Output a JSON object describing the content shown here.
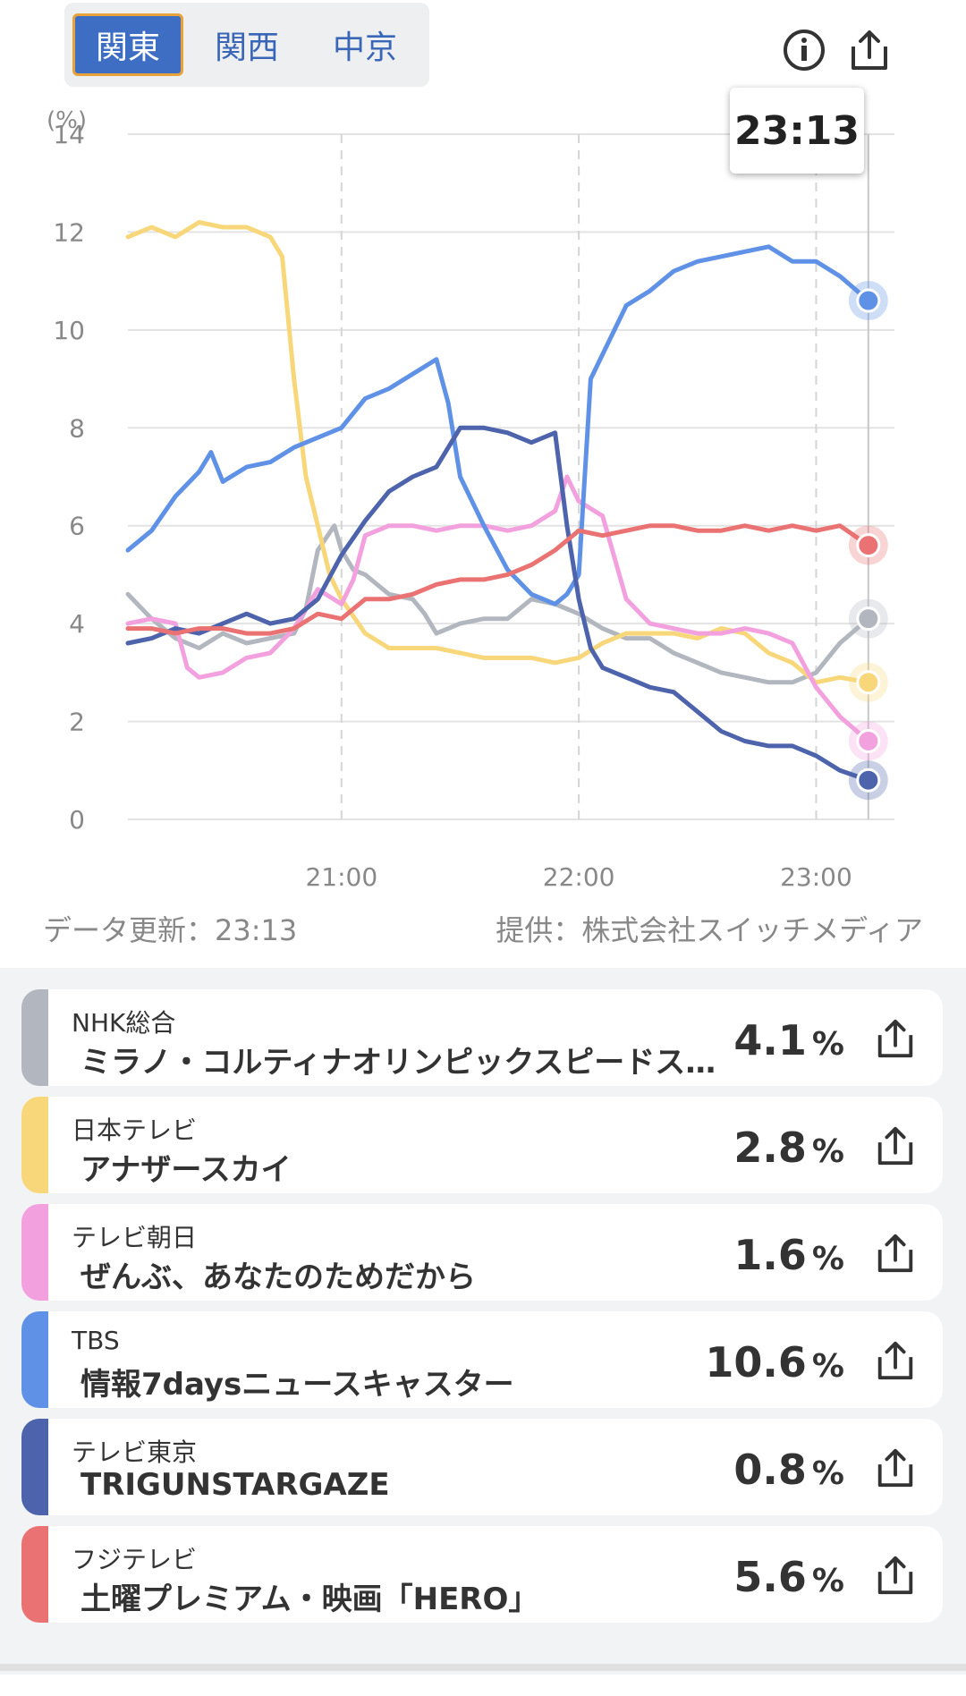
{
  "region_tabs": [
    {
      "label": "関東",
      "active": true
    },
    {
      "label": "関西",
      "active": false
    },
    {
      "label": "中京",
      "active": false
    }
  ],
  "icons": {
    "info": "info-icon",
    "share": "share-icon"
  },
  "tooltip_time": "23:13",
  "chart_data": {
    "type": "line",
    "ylabel": "(%)",
    "ylim": [
      0,
      14
    ],
    "yticks": [
      0,
      2,
      4,
      6,
      8,
      10,
      12,
      14
    ],
    "xlim": [
      20.1,
      23.33
    ],
    "xticks": [
      {
        "v": 21,
        "label": "21:00"
      },
      {
        "v": 22,
        "label": "22:00"
      },
      {
        "v": 23,
        "label": "23:00"
      }
    ],
    "cursor_x": 23.22,
    "grid": true,
    "series": [
      {
        "name": "NHK総合",
        "color": "#b2b7bf",
        "points": [
          [
            20.1,
            4.6
          ],
          [
            20.2,
            4.1
          ],
          [
            20.3,
            3.7
          ],
          [
            20.4,
            3.5
          ],
          [
            20.5,
            3.8
          ],
          [
            20.6,
            3.6
          ],
          [
            20.7,
            3.7
          ],
          [
            20.8,
            3.8
          ],
          [
            20.85,
            4.3
          ],
          [
            20.9,
            5.5
          ],
          [
            20.97,
            6.0
          ],
          [
            21.0,
            5.5
          ],
          [
            21.05,
            5.1
          ],
          [
            21.1,
            5.0
          ],
          [
            21.2,
            4.6
          ],
          [
            21.3,
            4.5
          ],
          [
            21.35,
            4.2
          ],
          [
            21.4,
            3.8
          ],
          [
            21.5,
            4.0
          ],
          [
            21.6,
            4.1
          ],
          [
            21.7,
            4.1
          ],
          [
            21.8,
            4.5
          ],
          [
            21.9,
            4.4
          ],
          [
            22.0,
            4.2
          ],
          [
            22.1,
            3.9
          ],
          [
            22.2,
            3.7
          ],
          [
            22.3,
            3.7
          ],
          [
            22.4,
            3.4
          ],
          [
            22.5,
            3.2
          ],
          [
            22.6,
            3.0
          ],
          [
            22.7,
            2.9
          ],
          [
            22.8,
            2.8
          ],
          [
            22.9,
            2.8
          ],
          [
            23.0,
            3.0
          ],
          [
            23.1,
            3.6
          ],
          [
            23.22,
            4.1
          ]
        ]
      },
      {
        "name": "日本テレビ",
        "color": "#f8d77a",
        "points": [
          [
            20.1,
            11.9
          ],
          [
            20.2,
            12.1
          ],
          [
            20.3,
            11.9
          ],
          [
            20.4,
            12.2
          ],
          [
            20.5,
            12.1
          ],
          [
            20.6,
            12.1
          ],
          [
            20.7,
            11.9
          ],
          [
            20.75,
            11.5
          ],
          [
            20.8,
            9.0
          ],
          [
            20.85,
            7.0
          ],
          [
            20.9,
            6.0
          ],
          [
            20.95,
            5.0
          ],
          [
            21.0,
            4.5
          ],
          [
            21.1,
            3.8
          ],
          [
            21.2,
            3.5
          ],
          [
            21.4,
            3.5
          ],
          [
            21.6,
            3.3
          ],
          [
            21.8,
            3.3
          ],
          [
            21.9,
            3.2
          ],
          [
            22.0,
            3.3
          ],
          [
            22.1,
            3.6
          ],
          [
            22.2,
            3.8
          ],
          [
            22.4,
            3.8
          ],
          [
            22.5,
            3.7
          ],
          [
            22.6,
            3.9
          ],
          [
            22.7,
            3.8
          ],
          [
            22.8,
            3.4
          ],
          [
            22.9,
            3.2
          ],
          [
            23.0,
            2.8
          ],
          [
            23.1,
            2.9
          ],
          [
            23.22,
            2.8
          ]
        ]
      },
      {
        "name": "テレビ朝日",
        "color": "#f2a0de",
        "points": [
          [
            20.1,
            4.0
          ],
          [
            20.2,
            4.1
          ],
          [
            20.3,
            4.0
          ],
          [
            20.35,
            3.1
          ],
          [
            20.4,
            2.9
          ],
          [
            20.5,
            3.0
          ],
          [
            20.6,
            3.3
          ],
          [
            20.7,
            3.4
          ],
          [
            20.8,
            3.9
          ],
          [
            20.9,
            4.7
          ],
          [
            21.0,
            4.4
          ],
          [
            21.05,
            4.9
          ],
          [
            21.1,
            5.8
          ],
          [
            21.2,
            6.0
          ],
          [
            21.3,
            6.0
          ],
          [
            21.4,
            5.9
          ],
          [
            21.5,
            6.0
          ],
          [
            21.6,
            6.0
          ],
          [
            21.7,
            5.9
          ],
          [
            21.8,
            6.0
          ],
          [
            21.9,
            6.3
          ],
          [
            21.95,
            7.0
          ],
          [
            22.0,
            6.5
          ],
          [
            22.1,
            6.2
          ],
          [
            22.2,
            4.5
          ],
          [
            22.3,
            4.0
          ],
          [
            22.4,
            3.9
          ],
          [
            22.5,
            3.8
          ],
          [
            22.6,
            3.8
          ],
          [
            22.7,
            3.9
          ],
          [
            22.8,
            3.8
          ],
          [
            22.9,
            3.6
          ],
          [
            23.0,
            2.7
          ],
          [
            23.1,
            2.1
          ],
          [
            23.22,
            1.6
          ]
        ]
      },
      {
        "name": "TBS",
        "color": "#5f92e6",
        "points": [
          [
            20.1,
            5.5
          ],
          [
            20.2,
            5.9
          ],
          [
            20.3,
            6.6
          ],
          [
            20.4,
            7.1
          ],
          [
            20.45,
            7.5
          ],
          [
            20.5,
            6.9
          ],
          [
            20.6,
            7.2
          ],
          [
            20.7,
            7.3
          ],
          [
            20.8,
            7.6
          ],
          [
            20.9,
            7.8
          ],
          [
            21.0,
            8.0
          ],
          [
            21.1,
            8.6
          ],
          [
            21.2,
            8.8
          ],
          [
            21.3,
            9.1
          ],
          [
            21.4,
            9.4
          ],
          [
            21.45,
            8.5
          ],
          [
            21.5,
            7.0
          ],
          [
            21.6,
            6.0
          ],
          [
            21.7,
            5.1
          ],
          [
            21.8,
            4.6
          ],
          [
            21.9,
            4.4
          ],
          [
            21.95,
            4.6
          ],
          [
            22.0,
            5.0
          ],
          [
            22.05,
            9.0
          ],
          [
            22.1,
            9.5
          ],
          [
            22.2,
            10.5
          ],
          [
            22.3,
            10.8
          ],
          [
            22.4,
            11.2
          ],
          [
            22.5,
            11.4
          ],
          [
            22.6,
            11.5
          ],
          [
            22.7,
            11.6
          ],
          [
            22.8,
            11.7
          ],
          [
            22.9,
            11.4
          ],
          [
            23.0,
            11.4
          ],
          [
            23.1,
            11.1
          ],
          [
            23.22,
            10.6
          ]
        ]
      },
      {
        "name": "テレビ東京",
        "color": "#4d63ab",
        "points": [
          [
            20.1,
            3.6
          ],
          [
            20.2,
            3.7
          ],
          [
            20.3,
            3.9
          ],
          [
            20.4,
            3.8
          ],
          [
            20.5,
            4.0
          ],
          [
            20.6,
            4.2
          ],
          [
            20.7,
            4.0
          ],
          [
            20.8,
            4.1
          ],
          [
            20.9,
            4.5
          ],
          [
            21.0,
            5.4
          ],
          [
            21.1,
            6.1
          ],
          [
            21.2,
            6.7
          ],
          [
            21.3,
            7.0
          ],
          [
            21.4,
            7.2
          ],
          [
            21.5,
            8.0
          ],
          [
            21.6,
            8.0
          ],
          [
            21.7,
            7.9
          ],
          [
            21.8,
            7.7
          ],
          [
            21.9,
            7.9
          ],
          [
            21.95,
            6.0
          ],
          [
            22.0,
            4.5
          ],
          [
            22.05,
            3.5
          ],
          [
            22.1,
            3.1
          ],
          [
            22.2,
            2.9
          ],
          [
            22.3,
            2.7
          ],
          [
            22.4,
            2.6
          ],
          [
            22.5,
            2.2
          ],
          [
            22.6,
            1.8
          ],
          [
            22.7,
            1.6
          ],
          [
            22.8,
            1.5
          ],
          [
            22.9,
            1.5
          ],
          [
            23.0,
            1.3
          ],
          [
            23.1,
            1.0
          ],
          [
            23.22,
            0.8
          ]
        ]
      },
      {
        "name": "フジテレビ",
        "color": "#ea7272",
        "points": [
          [
            20.1,
            3.9
          ],
          [
            20.2,
            3.9
          ],
          [
            20.3,
            3.8
          ],
          [
            20.4,
            3.9
          ],
          [
            20.5,
            3.9
          ],
          [
            20.6,
            3.8
          ],
          [
            20.7,
            3.8
          ],
          [
            20.8,
            3.9
          ],
          [
            20.9,
            4.2
          ],
          [
            21.0,
            4.1
          ],
          [
            21.1,
            4.5
          ],
          [
            21.2,
            4.5
          ],
          [
            21.3,
            4.6
          ],
          [
            21.4,
            4.8
          ],
          [
            21.5,
            4.9
          ],
          [
            21.6,
            4.9
          ],
          [
            21.7,
            5.0
          ],
          [
            21.8,
            5.2
          ],
          [
            21.9,
            5.5
          ],
          [
            22.0,
            5.9
          ],
          [
            22.1,
            5.8
          ],
          [
            22.2,
            5.9
          ],
          [
            22.3,
            6.0
          ],
          [
            22.4,
            6.0
          ],
          [
            22.5,
            5.9
          ],
          [
            22.6,
            5.9
          ],
          [
            22.7,
            6.0
          ],
          [
            22.8,
            5.9
          ],
          [
            22.9,
            6.0
          ],
          [
            23.0,
            5.9
          ],
          [
            23.1,
            6.0
          ],
          [
            23.22,
            5.6
          ]
        ]
      }
    ]
  },
  "meta": {
    "update_label": "データ更新：23:13",
    "provider_label": "提供：株式会社スイッチメディア"
  },
  "channels": [
    {
      "station": "NHK総合",
      "program": "ミラノ・コルティナオリンピックスピードスケート",
      "rating": "4.1",
      "unit": "%",
      "color": "#b2b7bf"
    },
    {
      "station": "日本テレビ",
      "program": "アナザースカイ",
      "rating": "2.8",
      "unit": "%",
      "color": "#f8d77a"
    },
    {
      "station": "テレビ朝日",
      "program": "ぜんぶ、あなたのためだから",
      "rating": "1.6",
      "unit": "%",
      "color": "#f2a0de"
    },
    {
      "station": "TBS",
      "program": "情報7daysニュースキャスター",
      "rating": "10.6",
      "unit": "%",
      "color": "#5f92e6"
    },
    {
      "station": "テレビ東京",
      "program": "TRIGUNSTARGAZE",
      "rating": "0.8",
      "unit": "%",
      "color": "#4d63ab"
    },
    {
      "station": "フジテレビ",
      "program": "土曜プレミアム・映画「HERO」",
      "rating": "5.6",
      "unit": "%",
      "color": "#ea7272"
    }
  ]
}
